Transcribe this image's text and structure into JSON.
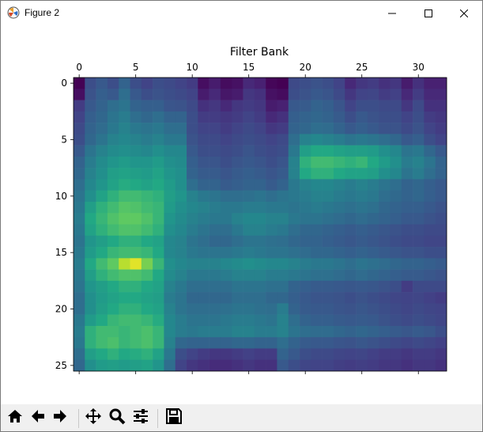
{
  "window": {
    "title": "Figure 2",
    "icons": {
      "app": "matplotlib-icon",
      "minimize": "minimize-icon",
      "maximize": "maximize-icon",
      "close": "close-icon"
    }
  },
  "toolbar": {
    "buttons": [
      "home-icon",
      "back-arrow-icon",
      "forward-arrow-icon",
      "pan-icon",
      "zoom-icon",
      "configure-subplots-icon",
      "save-icon"
    ]
  },
  "chart_data": {
    "type": "heatmap",
    "title": "Filter Bank",
    "colormap": "viridis",
    "n_cols": 33,
    "n_rows": 26,
    "x_ticks": [
      0,
      5,
      10,
      15,
      20,
      25,
      30
    ],
    "y_ticks": [
      0,
      5,
      10,
      15,
      20,
      25
    ],
    "x_tick_position": "top",
    "grid": false,
    "values": [
      [
        0.0,
        0.3,
        0.35,
        0.3,
        0.4,
        0.3,
        0.25,
        0.3,
        0.28,
        0.25,
        0.22,
        0.05,
        0.1,
        0.04,
        0.06,
        0.15,
        0.12,
        0.02,
        0.0,
        0.28,
        0.3,
        0.32,
        0.3,
        0.25,
        0.15,
        0.2,
        0.22,
        0.18,
        0.2,
        0.1,
        0.18,
        0.12,
        0.12
      ],
      [
        0.05,
        0.32,
        0.38,
        0.35,
        0.45,
        0.35,
        0.3,
        0.32,
        0.3,
        0.28,
        0.25,
        0.1,
        0.15,
        0.08,
        0.1,
        0.2,
        0.18,
        0.06,
        0.04,
        0.3,
        0.32,
        0.35,
        0.33,
        0.28,
        0.2,
        0.25,
        0.26,
        0.22,
        0.24,
        0.15,
        0.22,
        0.15,
        0.15
      ],
      [
        0.22,
        0.35,
        0.4,
        0.45,
        0.48,
        0.4,
        0.38,
        0.38,
        0.33,
        0.32,
        0.28,
        0.18,
        0.2,
        0.15,
        0.2,
        0.22,
        0.2,
        0.1,
        0.12,
        0.35,
        0.36,
        0.4,
        0.38,
        0.33,
        0.25,
        0.3,
        0.3,
        0.28,
        0.28,
        0.2,
        0.28,
        0.18,
        0.18
      ],
      [
        0.25,
        0.38,
        0.42,
        0.48,
        0.52,
        0.45,
        0.42,
        0.45,
        0.4,
        0.4,
        0.3,
        0.22,
        0.22,
        0.2,
        0.22,
        0.25,
        0.22,
        0.15,
        0.18,
        0.38,
        0.4,
        0.42,
        0.4,
        0.36,
        0.3,
        0.35,
        0.32,
        0.3,
        0.3,
        0.25,
        0.3,
        0.22,
        0.2
      ],
      [
        0.28,
        0.4,
        0.44,
        0.5,
        0.55,
        0.5,
        0.48,
        0.5,
        0.45,
        0.45,
        0.3,
        0.25,
        0.25,
        0.22,
        0.25,
        0.28,
        0.25,
        0.2,
        0.22,
        0.4,
        0.42,
        0.45,
        0.44,
        0.4,
        0.35,
        0.38,
        0.35,
        0.32,
        0.32,
        0.28,
        0.32,
        0.25,
        0.22
      ],
      [
        0.3,
        0.42,
        0.48,
        0.55,
        0.58,
        0.55,
        0.52,
        0.55,
        0.5,
        0.5,
        0.32,
        0.28,
        0.28,
        0.25,
        0.28,
        0.3,
        0.28,
        0.25,
        0.28,
        0.45,
        0.55,
        0.58,
        0.55,
        0.52,
        0.48,
        0.5,
        0.48,
        0.45,
        0.42,
        0.35,
        0.38,
        0.3,
        0.25
      ],
      [
        0.35,
        0.48,
        0.55,
        0.6,
        0.62,
        0.6,
        0.58,
        0.62,
        0.58,
        0.58,
        0.35,
        0.3,
        0.3,
        0.28,
        0.3,
        0.33,
        0.3,
        0.28,
        0.3,
        0.5,
        0.7,
        0.75,
        0.75,
        0.72,
        0.7,
        0.7,
        0.68,
        0.62,
        0.58,
        0.48,
        0.5,
        0.42,
        0.35
      ],
      [
        0.4,
        0.52,
        0.6,
        0.65,
        0.68,
        0.65,
        0.65,
        0.68,
        0.62,
        0.6,
        0.38,
        0.33,
        0.33,
        0.3,
        0.33,
        0.35,
        0.33,
        0.3,
        0.33,
        0.55,
        0.78,
        0.82,
        0.82,
        0.8,
        0.78,
        0.8,
        0.75,
        0.68,
        0.62,
        0.52,
        0.55,
        0.48,
        0.4
      ],
      [
        0.42,
        0.55,
        0.62,
        0.7,
        0.72,
        0.7,
        0.68,
        0.72,
        0.65,
        0.62,
        0.4,
        0.36,
        0.36,
        0.33,
        0.36,
        0.38,
        0.36,
        0.33,
        0.36,
        0.55,
        0.75,
        0.78,
        0.78,
        0.75,
        0.72,
        0.72,
        0.7,
        0.62,
        0.58,
        0.48,
        0.52,
        0.45,
        0.4
      ],
      [
        0.45,
        0.58,
        0.65,
        0.72,
        0.76,
        0.75,
        0.72,
        0.75,
        0.68,
        0.62,
        0.45,
        0.4,
        0.4,
        0.36,
        0.38,
        0.4,
        0.4,
        0.36,
        0.4,
        0.5,
        0.55,
        0.58,
        0.58,
        0.55,
        0.52,
        0.55,
        0.52,
        0.48,
        0.45,
        0.4,
        0.42,
        0.38,
        0.35
      ],
      [
        0.48,
        0.62,
        0.72,
        0.78,
        0.82,
        0.82,
        0.8,
        0.78,
        0.7,
        0.65,
        0.55,
        0.5,
        0.48,
        0.45,
        0.45,
        0.46,
        0.48,
        0.45,
        0.48,
        0.5,
        0.52,
        0.55,
        0.55,
        0.52,
        0.5,
        0.52,
        0.5,
        0.45,
        0.43,
        0.4,
        0.42,
        0.38,
        0.35
      ],
      [
        0.5,
        0.7,
        0.78,
        0.82,
        0.86,
        0.85,
        0.82,
        0.8,
        0.68,
        0.62,
        0.58,
        0.55,
        0.52,
        0.5,
        0.5,
        0.52,
        0.52,
        0.5,
        0.5,
        0.48,
        0.5,
        0.52,
        0.5,
        0.48,
        0.46,
        0.48,
        0.46,
        0.42,
        0.4,
        0.38,
        0.38,
        0.35,
        0.32
      ],
      [
        0.52,
        0.75,
        0.8,
        0.85,
        0.88,
        0.88,
        0.85,
        0.8,
        0.65,
        0.6,
        0.55,
        0.52,
        0.5,
        0.5,
        0.55,
        0.58,
        0.58,
        0.55,
        0.55,
        0.5,
        0.48,
        0.48,
        0.46,
        0.44,
        0.42,
        0.44,
        0.42,
        0.4,
        0.38,
        0.35,
        0.35,
        0.32,
        0.3
      ],
      [
        0.5,
        0.72,
        0.78,
        0.82,
        0.85,
        0.85,
        0.82,
        0.78,
        0.62,
        0.58,
        0.52,
        0.48,
        0.45,
        0.45,
        0.5,
        0.55,
        0.55,
        0.52,
        0.5,
        0.45,
        0.42,
        0.42,
        0.4,
        0.38,
        0.36,
        0.38,
        0.36,
        0.34,
        0.32,
        0.3,
        0.3,
        0.28,
        0.28
      ],
      [
        0.48,
        0.65,
        0.7,
        0.75,
        0.78,
        0.78,
        0.75,
        0.72,
        0.58,
        0.55,
        0.48,
        0.45,
        0.42,
        0.42,
        0.45,
        0.48,
        0.48,
        0.46,
        0.45,
        0.42,
        0.4,
        0.4,
        0.38,
        0.36,
        0.34,
        0.36,
        0.34,
        0.32,
        0.3,
        0.28,
        0.28,
        0.26,
        0.26
      ],
      [
        0.5,
        0.68,
        0.75,
        0.8,
        0.82,
        0.82,
        0.8,
        0.75,
        0.58,
        0.55,
        0.5,
        0.48,
        0.48,
        0.48,
        0.5,
        0.52,
        0.5,
        0.48,
        0.48,
        0.46,
        0.44,
        0.42,
        0.42,
        0.4,
        0.38,
        0.4,
        0.38,
        0.36,
        0.34,
        0.32,
        0.32,
        0.3,
        0.3
      ],
      [
        0.52,
        0.75,
        0.82,
        0.88,
        0.95,
        0.98,
        0.9,
        0.8,
        0.62,
        0.58,
        0.55,
        0.55,
        0.55,
        0.58,
        0.6,
        0.62,
        0.6,
        0.58,
        0.58,
        0.55,
        0.52,
        0.5,
        0.5,
        0.48,
        0.45,
        0.48,
        0.46,
        0.44,
        0.42,
        0.4,
        0.4,
        0.38,
        0.36
      ],
      [
        0.5,
        0.7,
        0.78,
        0.82,
        0.85,
        0.85,
        0.82,
        0.75,
        0.6,
        0.55,
        0.5,
        0.5,
        0.5,
        0.52,
        0.55,
        0.55,
        0.55,
        0.52,
        0.52,
        0.5,
        0.48,
        0.46,
        0.46,
        0.44,
        0.42,
        0.44,
        0.42,
        0.4,
        0.38,
        0.36,
        0.36,
        0.34,
        0.32
      ],
      [
        0.48,
        0.65,
        0.7,
        0.75,
        0.78,
        0.78,
        0.75,
        0.72,
        0.55,
        0.5,
        0.45,
        0.45,
        0.45,
        0.45,
        0.48,
        0.48,
        0.48,
        0.46,
        0.46,
        0.4,
        0.38,
        0.36,
        0.36,
        0.35,
        0.34,
        0.35,
        0.34,
        0.32,
        0.3,
        0.22,
        0.28,
        0.28,
        0.28
      ],
      [
        0.45,
        0.62,
        0.68,
        0.72,
        0.75,
        0.75,
        0.72,
        0.7,
        0.52,
        0.48,
        0.42,
        0.42,
        0.42,
        0.42,
        0.45,
        0.45,
        0.45,
        0.42,
        0.42,
        0.38,
        0.35,
        0.33,
        0.33,
        0.32,
        0.3,
        0.32,
        0.3,
        0.28,
        0.26,
        0.25,
        0.26,
        0.24,
        0.22
      ],
      [
        0.45,
        0.62,
        0.7,
        0.75,
        0.78,
        0.78,
        0.75,
        0.72,
        0.55,
        0.48,
        0.45,
        0.45,
        0.45,
        0.46,
        0.48,
        0.48,
        0.46,
        0.45,
        0.52,
        0.4,
        0.36,
        0.35,
        0.35,
        0.33,
        0.32,
        0.34,
        0.32,
        0.3,
        0.28,
        0.26,
        0.28,
        0.26,
        0.25
      ],
      [
        0.5,
        0.68,
        0.75,
        0.8,
        0.82,
        0.82,
        0.8,
        0.76,
        0.58,
        0.52,
        0.48,
        0.48,
        0.48,
        0.5,
        0.52,
        0.52,
        0.5,
        0.48,
        0.55,
        0.45,
        0.4,
        0.38,
        0.38,
        0.36,
        0.35,
        0.36,
        0.35,
        0.32,
        0.3,
        0.28,
        0.3,
        0.28,
        0.26
      ],
      [
        0.52,
        0.78,
        0.82,
        0.82,
        0.8,
        0.82,
        0.84,
        0.8,
        0.58,
        0.52,
        0.5,
        0.52,
        0.52,
        0.52,
        0.55,
        0.55,
        0.52,
        0.52,
        0.55,
        0.48,
        0.45,
        0.44,
        0.44,
        0.42,
        0.4,
        0.42,
        0.4,
        0.38,
        0.36,
        0.34,
        0.36,
        0.34,
        0.3
      ],
      [
        0.5,
        0.78,
        0.82,
        0.84,
        0.8,
        0.82,
        0.84,
        0.8,
        0.55,
        0.42,
        0.4,
        0.4,
        0.4,
        0.4,
        0.42,
        0.42,
        0.4,
        0.4,
        0.45,
        0.4,
        0.36,
        0.35,
        0.35,
        0.33,
        0.32,
        0.34,
        0.32,
        0.3,
        0.28,
        0.26,
        0.28,
        0.26,
        0.24
      ],
      [
        0.45,
        0.7,
        0.75,
        0.78,
        0.75,
        0.76,
        0.78,
        0.72,
        0.5,
        0.3,
        0.25,
        0.22,
        0.2,
        0.2,
        0.22,
        0.24,
        0.22,
        0.22,
        0.4,
        0.35,
        0.3,
        0.28,
        0.28,
        0.26,
        0.25,
        0.26,
        0.24,
        0.22,
        0.22,
        0.2,
        0.22,
        0.22,
        0.2
      ],
      [
        0.42,
        0.62,
        0.68,
        0.7,
        0.68,
        0.7,
        0.72,
        0.65,
        0.45,
        0.25,
        0.2,
        0.18,
        0.16,
        0.16,
        0.18,
        0.2,
        0.18,
        0.18,
        0.35,
        0.3,
        0.26,
        0.25,
        0.25,
        0.23,
        0.22,
        0.23,
        0.22,
        0.2,
        0.2,
        0.18,
        0.2,
        0.2,
        0.18
      ]
    ]
  }
}
